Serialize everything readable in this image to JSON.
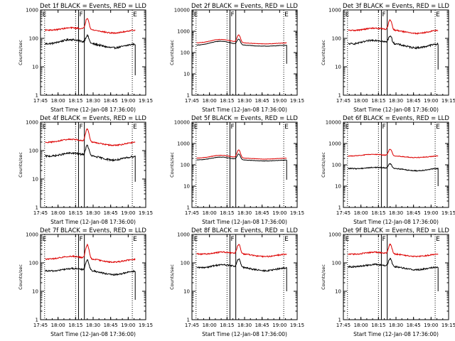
{
  "figure": {
    "background": "#ffffff",
    "colors": {
      "events": "#000000",
      "lld": "#dd0000"
    }
  },
  "chart_data": [
    {
      "type": "line",
      "title": "Det 1f BLACK = Events, RED = LLD",
      "xlabel": "Start Time (12-Jan-08 17:36:00)",
      "ylabel": "Counts/sec",
      "xticks": [
        "17:45",
        "18:00",
        "18:15",
        "18:30",
        "18:45",
        "19:00",
        "19:15"
      ],
      "xlim_min": [
        9,
        99
      ],
      "yscale": "log",
      "ylim": [
        1,
        1000
      ],
      "yticks": [
        "1",
        "10",
        "100",
        "1000"
      ],
      "vlines_dotted_min": [
        12.5,
        39,
        87.5
      ],
      "vlines_solid_min": [
        41.5,
        46.5
      ],
      "markers": [
        {
          "label": "E",
          "x_min": 10
        },
        {
          "label": "F",
          "x_min": 41.5
        },
        {
          "label": "E",
          "x_min": 87.5
        }
      ],
      "series": [
        {
          "name": "Events",
          "color": "#000000",
          "xrange_min": [
            13,
            90
          ],
          "base": 55,
          "bump": 1.9,
          "peak": 1.8,
          "wave": 0.15,
          "noise": 0.07,
          "endrop": 5
        },
        {
          "name": "LLD",
          "color": "#dd0000",
          "xrange_min": [
            13,
            90
          ],
          "base": 175,
          "bump": 1.5,
          "peak": 2.5,
          "wave": 0.12,
          "noise": 0.05
        }
      ]
    },
    {
      "type": "line",
      "title": "Det 2f BLACK = Events, RED = LLD",
      "xlabel": "Start Time (12-Jan-08 17:36:00)",
      "ylabel": "Counts/sec",
      "xticks": [
        "17:45",
        "18:00",
        "18:15",
        "18:30",
        "18:45",
        "19:00",
        "19:15"
      ],
      "xlim_min": [
        9,
        99
      ],
      "yscale": "log",
      "ylim": [
        1,
        10000
      ],
      "yticks": [
        "1",
        "10",
        "100",
        "1000",
        "10000"
      ],
      "vlines_dotted_min": [
        12.5,
        39,
        87.5
      ],
      "vlines_solid_min": [
        41.5,
        46.5
      ],
      "markers": [
        {
          "label": "E",
          "x_min": 10
        },
        {
          "label": "F",
          "x_min": 41.5
        },
        {
          "label": "E",
          "x_min": 87.5
        }
      ],
      "series": [
        {
          "name": "Events",
          "color": "#000000",
          "xrange_min": [
            13,
            90
          ],
          "base": 210,
          "bump": 1.7,
          "peak": 1.8,
          "wave": 0.05,
          "noise": 0.02,
          "endrop": 30
        },
        {
          "name": "LLD",
          "color": "#dd0000",
          "xrange_min": [
            13,
            90
          ],
          "base": 270,
          "bump": 1.6,
          "peak": 2.2,
          "wave": 0.05,
          "noise": 0.02
        }
      ]
    },
    {
      "type": "line",
      "title": "Det 3f BLACK = Events, RED = LLD",
      "xlabel": "Start Time (12-Jan-08 17:36:00)",
      "ylabel": "Counts/sec",
      "xticks": [
        "17:45",
        "18:00",
        "18:15",
        "18:30",
        "18:45",
        "19:00",
        "19:15"
      ],
      "xlim_min": [
        9,
        99
      ],
      "yscale": "log",
      "ylim": [
        1,
        1000
      ],
      "yticks": [
        "1",
        "10",
        "100",
        "1000"
      ],
      "vlines_dotted_min": [
        12.5,
        39,
        87.5
      ],
      "vlines_solid_min": [
        41.5,
        46.5
      ],
      "markers": [
        {
          "label": "E",
          "x_min": 10
        },
        {
          "label": "F",
          "x_min": 41.5
        },
        {
          "label": "E",
          "x_min": 87.5
        }
      ],
      "series": [
        {
          "name": "Events",
          "color": "#000000",
          "xrange_min": [
            13,
            90
          ],
          "base": 55,
          "bump": 1.8,
          "peak": 1.8,
          "wave": 0.15,
          "noise": 0.07,
          "endrop": 8
        },
        {
          "name": "LLD",
          "color": "#dd0000",
          "xrange_min": [
            13,
            90
          ],
          "base": 170,
          "bump": 1.5,
          "peak": 2.2,
          "wave": 0.12,
          "noise": 0.05
        }
      ]
    },
    {
      "type": "line",
      "title": "Det 4f BLACK = Events, RED = LLD",
      "xlabel": "Start Time (12-Jan-08 17:36:00)",
      "ylabel": "Counts/sec",
      "xticks": [
        "17:45",
        "18:00",
        "18:15",
        "18:30",
        "18:45",
        "19:00",
        "19:15"
      ],
      "xlim_min": [
        9,
        99
      ],
      "yscale": "log",
      "ylim": [
        1,
        1000
      ],
      "yticks": [
        "1",
        "10",
        "100",
        "1000"
      ],
      "vlines_dotted_min": [
        12.5,
        39,
        87.5
      ],
      "vlines_solid_min": [
        41.5,
        46.5
      ],
      "markers": [
        {
          "label": "E",
          "x_min": 10
        },
        {
          "label": "F",
          "x_min": 41.5
        },
        {
          "label": "E",
          "x_min": 87.5
        }
      ],
      "series": [
        {
          "name": "Events",
          "color": "#000000",
          "xrange_min": [
            13,
            90
          ],
          "base": 55,
          "bump": 1.7,
          "peak": 2.2,
          "wave": 0.15,
          "noise": 0.07,
          "endrop": 8
        },
        {
          "name": "LLD",
          "color": "#dd0000",
          "xrange_min": [
            13,
            90
          ],
          "base": 175,
          "bump": 1.6,
          "peak": 2.8,
          "wave": 0.12,
          "noise": 0.05
        }
      ]
    },
    {
      "type": "line",
      "title": "Det 5f BLACK = Events, RED = LLD",
      "xlabel": "Start Time (12-Jan-08 17:36:00)",
      "ylabel": "Counts/sec",
      "xticks": [
        "17:45",
        "18:00",
        "18:15",
        "18:30",
        "18:45",
        "19:00",
        "19:15"
      ],
      "xlim_min": [
        9,
        99
      ],
      "yscale": "log",
      "ylim": [
        1,
        10000
      ],
      "yticks": [
        "1",
        "10",
        "100",
        "1000",
        "10000"
      ],
      "vlines_dotted_min": [
        12.5,
        39,
        87.5
      ],
      "vlines_solid_min": [
        41.5,
        46.5
      ],
      "markers": [
        {
          "label": "E",
          "x_min": 10
        },
        {
          "label": "F",
          "x_min": 41.5
        },
        {
          "label": "E",
          "x_min": 87.5
        }
      ],
      "series": [
        {
          "name": "Events",
          "color": "#000000",
          "xrange_min": [
            13,
            90
          ],
          "base": 160,
          "bump": 1.5,
          "peak": 1.8,
          "wave": 0.05,
          "noise": 0.02,
          "endrop": 20
        },
        {
          "name": "LLD",
          "color": "#dd0000",
          "xrange_min": [
            13,
            90
          ],
          "base": 195,
          "bump": 1.5,
          "peak": 2.3,
          "wave": 0.05,
          "noise": 0.02
        }
      ]
    },
    {
      "type": "line",
      "title": "Det 6f BLACK = Events, RED = LLD",
      "xlabel": "Start Time (12-Jan-08 17:36:00)",
      "ylabel": "Counts/sec",
      "xticks": [
        "17:45",
        "18:00",
        "18:15",
        "18:30",
        "18:45",
        "19:00",
        "19:15"
      ],
      "xlim_min": [
        9,
        99
      ],
      "yscale": "log",
      "ylim": [
        1,
        10000
      ],
      "yticks": [
        "1",
        "10",
        "100",
        "1000",
        "10000"
      ],
      "vlines_dotted_min": [
        12.5,
        39,
        87.5
      ],
      "vlines_solid_min": [
        41.5,
        46.5
      ],
      "markers": [
        {
          "label": "E",
          "x_min": 10
        },
        {
          "label": "F",
          "x_min": 41.5
        },
        {
          "label": "E",
          "x_min": 87.5
        }
      ],
      "series": [
        {
          "name": "Events",
          "color": "#000000",
          "xrange_min": [
            13,
            90
          ],
          "base": 60,
          "bump": 1.4,
          "peak": 1.6,
          "wave": 0.12,
          "noise": 0.05,
          "endrop": 10
        },
        {
          "name": "LLD",
          "color": "#dd0000",
          "xrange_min": [
            13,
            90
          ],
          "base": 240,
          "bump": 1.4,
          "peak": 2.0,
          "wave": 0.08,
          "noise": 0.04
        }
      ]
    },
    {
      "type": "line",
      "title": "Det 7f BLACK = Events, RED = LLD",
      "xlabel": "Start Time (12-Jan-08 17:36:00)",
      "ylabel": "Counts/sec",
      "xticks": [
        "17:45",
        "18:00",
        "18:15",
        "18:30",
        "18:45",
        "19:00",
        "19:15"
      ],
      "xlim_min": [
        9,
        99
      ],
      "yscale": "log",
      "ylim": [
        1,
        1000
      ],
      "yticks": [
        "1",
        "10",
        "100",
        "1000"
      ],
      "vlines_dotted_min": [
        12.5,
        39,
        87.5
      ],
      "vlines_solid_min": [
        41.5,
        46.5
      ],
      "markers": [
        {
          "label": "E",
          "x_min": 10
        },
        {
          "label": "F",
          "x_min": 41.5
        },
        {
          "label": "E",
          "x_min": 87.5
        }
      ],
      "series": [
        {
          "name": "Events",
          "color": "#000000",
          "xrange_min": [
            13,
            90
          ],
          "base": 45,
          "bump": 1.6,
          "peak": 2.3,
          "wave": 0.15,
          "noise": 0.06,
          "endrop": 5
        },
        {
          "name": "LLD",
          "color": "#dd0000",
          "xrange_min": [
            13,
            90
          ],
          "base": 120,
          "bump": 1.6,
          "peak": 3.0,
          "wave": 0.12,
          "noise": 0.05
        }
      ]
    },
    {
      "type": "line",
      "title": "Det 8f BLACK = Events, RED = LLD",
      "xlabel": "Start Time (12-Jan-08 17:36:00)",
      "ylabel": "Counts/sec",
      "xticks": [
        "17:45",
        "18:00",
        "18:15",
        "18:30",
        "18:45",
        "19:00",
        "19:15"
      ],
      "xlim_min": [
        9,
        99
      ],
      "yscale": "log",
      "ylim": [
        1,
        1000
      ],
      "yticks": [
        "1",
        "10",
        "100",
        "1000"
      ],
      "vlines_dotted_min": [
        12.5,
        39,
        87.5
      ],
      "vlines_solid_min": [
        41.5,
        46.5
      ],
      "markers": [
        {
          "label": "E",
          "x_min": 10
        },
        {
          "label": "F",
          "x_min": 41.5
        },
        {
          "label": "E",
          "x_min": 87.5
        }
      ],
      "series": [
        {
          "name": "Events",
          "color": "#000000",
          "xrange_min": [
            13,
            90
          ],
          "base": 60,
          "bump": 1.6,
          "peak": 1.9,
          "wave": 0.12,
          "noise": 0.06,
          "endrop": 10
        },
        {
          "name": "LLD",
          "color": "#dd0000",
          "xrange_min": [
            13,
            90
          ],
          "base": 185,
          "bump": 1.4,
          "peak": 2.1,
          "wave": 0.1,
          "noise": 0.05
        }
      ]
    },
    {
      "type": "line",
      "title": "Det 9f BLACK = Events, RED = LLD",
      "xlabel": "Start Time (12-Jan-08 17:36:00)",
      "ylabel": "Counts/sec",
      "xticks": [
        "17:45",
        "18:00",
        "18:15",
        "18:30",
        "18:45",
        "19:00",
        "19:15"
      ],
      "xlim_min": [
        9,
        99
      ],
      "yscale": "log",
      "ylim": [
        1,
        1000
      ],
      "yticks": [
        "1",
        "10",
        "100",
        "1000"
      ],
      "vlines_dotted_min": [
        12.5,
        39,
        87.5
      ],
      "vlines_solid_min": [
        41.5,
        46.5
      ],
      "markers": [
        {
          "label": "E",
          "x_min": 10
        },
        {
          "label": "F",
          "x_min": 41.5
        },
        {
          "label": "E",
          "x_min": 87.5
        }
      ],
      "series": [
        {
          "name": "Events",
          "color": "#000000",
          "xrange_min": [
            13,
            90
          ],
          "base": 65,
          "bump": 1.5,
          "peak": 1.8,
          "wave": 0.12,
          "noise": 0.06,
          "endrop": 10
        },
        {
          "name": "LLD",
          "color": "#dd0000",
          "xrange_min": [
            13,
            90
          ],
          "base": 185,
          "bump": 1.4,
          "peak": 2.1,
          "wave": 0.1,
          "noise": 0.05
        }
      ]
    }
  ]
}
